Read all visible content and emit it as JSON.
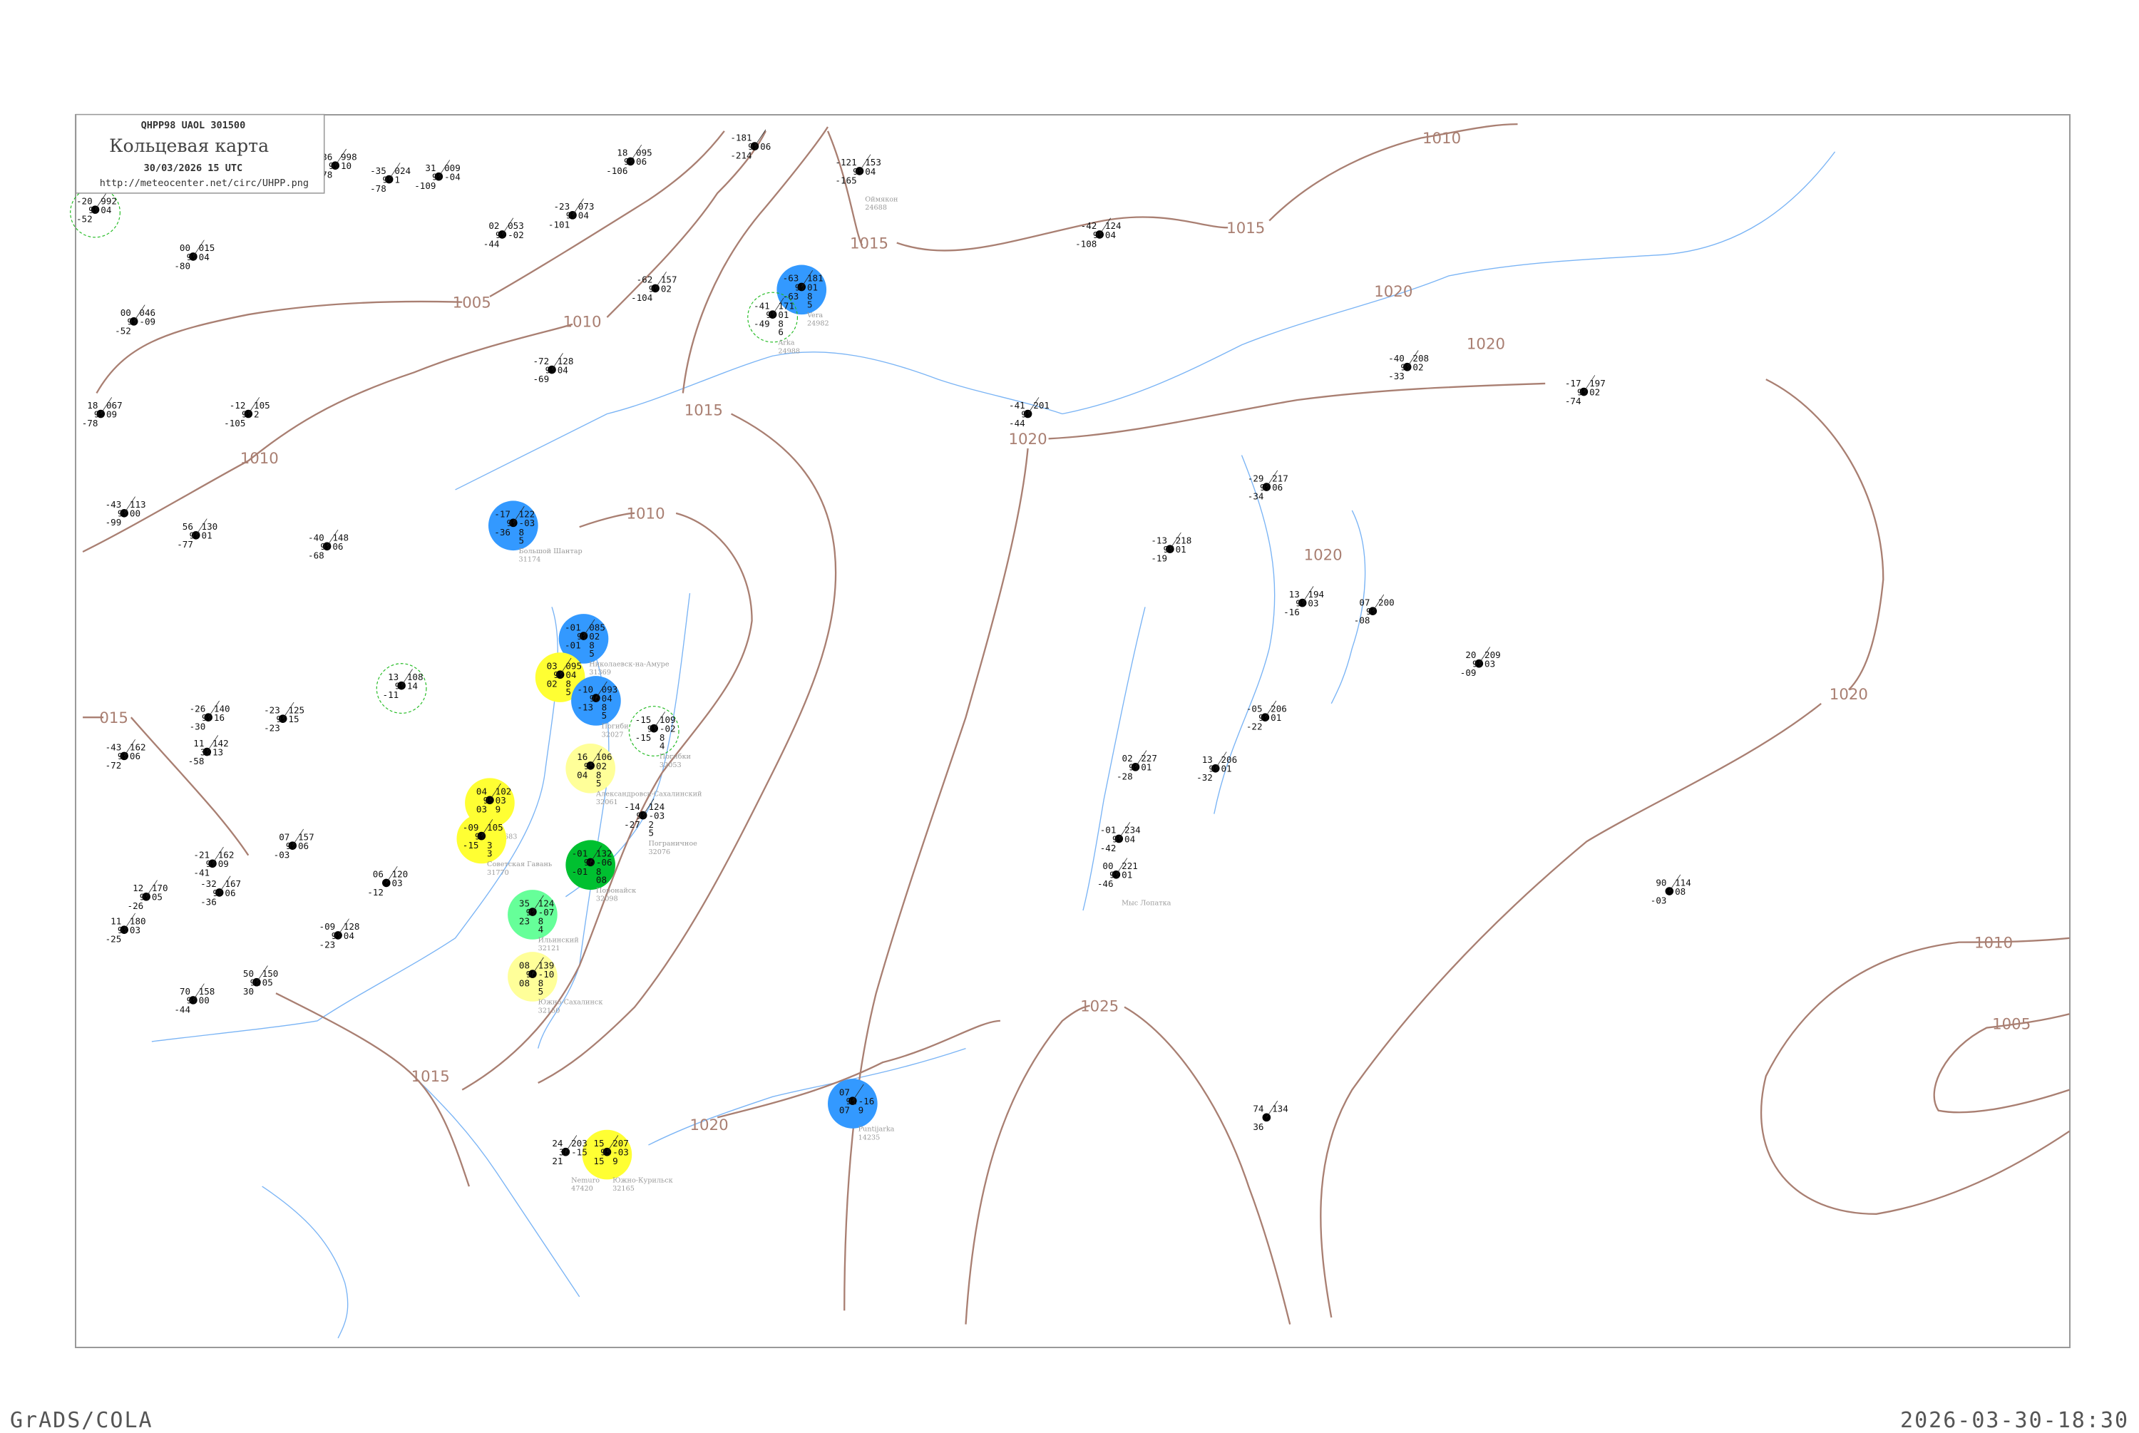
{
  "header": {
    "code_line": "QHPP98  UAOL  301500",
    "title": "Кольцевая карта",
    "datetime": "30/03/2026 15 UTC",
    "url": "http://meteocenter.net/circ/UHPP.png"
  },
  "footer": {
    "left": "GrADS/COLA",
    "right": "2026-03-30-18:30"
  },
  "colors": {
    "isobar": "#a97f72",
    "coast": "#7ab4f5",
    "blue_highlight": "#3399ff",
    "yellow_highlight": "#ffff33",
    "light_yellow_highlight": "#ffff99",
    "green_highlight": "#00c030",
    "light_green_highlight": "#66ff99",
    "dashed_ring": "#22bb22"
  },
  "isobars": [
    {
      "label": "1005"
    },
    {
      "label": "1010"
    },
    {
      "label": "1015"
    },
    {
      "label": "1015"
    },
    {
      "label": "1010"
    },
    {
      "label": "1020"
    },
    {
      "label": "1020"
    },
    {
      "label": "1015"
    },
    {
      "label": "1020"
    },
    {
      "label": "1010"
    },
    {
      "label": "1010"
    },
    {
      "label": "1020"
    },
    {
      "label": "015"
    },
    {
      "label": "1020"
    },
    {
      "label": "1010"
    },
    {
      "label": "1005"
    },
    {
      "label": "1025"
    },
    {
      "label": "1020"
    },
    {
      "label": "1015"
    }
  ],
  "stations": [
    {
      "name": "Vera",
      "id": "24982",
      "t": "-63",
      "vis": "97",
      "td": "-63",
      "p": "181",
      "tend": "01",
      "clouds": "8",
      "low": "5",
      "highlight": "blue"
    },
    {
      "name": "Arka",
      "id": "24988",
      "t": "-41",
      "vis": "97",
      "td": "-49",
      "p": "171",
      "tend": "01",
      "clouds": "8",
      "low": "6",
      "highlight": "ring"
    },
    {
      "name": "Большой Шантар",
      "id": "31174",
      "t": "-17",
      "vis": "97",
      "td": "-36",
      "p": "122",
      "tend": "-03",
      "clouds": "8",
      "low": "5",
      "highlight": "blue"
    },
    {
      "name": "Николаевск-на-Амуре",
      "id": "31369",
      "t": "-01",
      "vis": "97",
      "td": "-01",
      "p": "085",
      "tend": "02",
      "clouds": "8",
      "low": "5",
      "highlight": "blue"
    },
    {
      "name": "",
      "id": "",
      "t": "03",
      "vis": "97",
      "td": "02",
      "p": "095",
      "tend": "04",
      "clouds": "8",
      "low": "5",
      "highlight": "yellow"
    },
    {
      "name": "Погиби",
      "id": "32027",
      "t": "-10",
      "vis": "96",
      "td": "-13",
      "p": "093",
      "tend": "04",
      "clouds": "8",
      "low": "5",
      "highlight": "blue"
    },
    {
      "name": "Погибки",
      "id": "32053",
      "t": "-15",
      "vis": "97",
      "td": "-15",
      "p": "109",
      "tend": "-02",
      "clouds": "8",
      "low": "4",
      "highlight": "ring"
    },
    {
      "name": "Александровск-Сахалинский",
      "id": "32061",
      "t": "16",
      "vis": "95",
      "td": "04",
      "p": "106",
      "tend": "02",
      "clouds": "8",
      "low": "5",
      "highlight": "light_yellow"
    },
    {
      "name": "",
      "id": "31683",
      "t": "04",
      "vis": "93",
      "td": "03",
      "p": "102",
      "tend": "03",
      "clouds": "9",
      "low": "",
      "highlight": "yellow"
    },
    {
      "name": "Советская Гавань",
      "id": "31770",
      "t": "-09",
      "vis": "97",
      "td": "-15",
      "p": "105",
      "tend": "",
      "clouds": "3",
      "low": "3",
      "highlight": "yellow"
    },
    {
      "name": "Поронайск",
      "id": "32098",
      "t": "-01",
      "vis": "96",
      "td": "-01",
      "p": "132",
      "tend": "-06",
      "clouds": "8",
      "low": "08",
      "highlight": "green"
    },
    {
      "name": "Ильинский",
      "id": "32121",
      "t": "35",
      "vis": "97",
      "td": "23",
      "p": "124",
      "tend": "-07",
      "clouds": "8",
      "low": "4",
      "highlight": "light_green"
    },
    {
      "name": "Южно-Сахалинск",
      "id": "32150",
      "t": "08",
      "vis": "96",
      "td": "08",
      "p": "139",
      "tend": "-10",
      "clouds": "8",
      "low": "5",
      "highlight": "light_yellow"
    },
    {
      "name": "Южно-Курильск",
      "id": "32165",
      "t": "15",
      "vis": "93",
      "td": "15",
      "p": "207",
      "tend": "-03",
      "clouds": "9",
      "low": "",
      "highlight": "yellow"
    },
    {
      "name": "Puntijarka",
      "id": "14235",
      "t": "07",
      "vis": "91",
      "td": "07",
      "p": "",
      "tend": "-16",
      "clouds": "9",
      "low": "",
      "highlight": "blue"
    },
    {
      "name": "Пограничное",
      "id": "32076",
      "t": "-14",
      "vis": "97",
      "td": "-27",
      "p": "124",
      "tend": "-03",
      "clouds": "2",
      "low": "5",
      "highlight": "none"
    },
    {
      "name": "Nemuro",
      "id": "47420",
      "t": "24",
      "vis": "30",
      "td": "21",
      "p": "203",
      "tend": "-15",
      "clouds": "",
      "low": "",
      "highlight": "none"
    },
    {
      "name": "Оймякон",
      "id": "24688",
      "t": "-121",
      "vis": "97",
      "td": "-165",
      "p": "153",
      "tend": "04",
      "clouds": "",
      "low": "",
      "highlight": "none"
    },
    {
      "name": "Мыс Лопатка",
      "id": "",
      "t": "00",
      "vis": "97",
      "td": "-46",
      "p": "221",
      "tend": "01",
      "clouds": "",
      "low": "",
      "highlight": "none"
    },
    {
      "name": "",
      "id": "",
      "t": "-20",
      "vis": "97",
      "td": "-52",
      "p": "992",
      "tend": "04",
      "clouds": "",
      "low": "",
      "highlight": "ring"
    },
    {
      "name": "",
      "id": "",
      "t": "00",
      "vis": "97",
      "td": "-80",
      "p": "015",
      "tend": "04",
      "clouds": "",
      "low": "",
      "highlight": "none"
    },
    {
      "name": "",
      "id": "",
      "t": "00",
      "vis": "97",
      "td": "-52",
      "p": "046",
      "tend": "-09",
      "clouds": "",
      "low": "",
      "highlight": "none"
    },
    {
      "name": "",
      "id": "",
      "t": "18",
      "vis": "97",
      "td": "-78",
      "p": "067",
      "tend": "09",
      "clouds": "",
      "low": "",
      "highlight": "none"
    },
    {
      "name": "",
      "id": "",
      "t": "-12",
      "vis": "97",
      "td": "-105",
      "p": "105",
      "tend": "2",
      "clouds": "",
      "low": "",
      "highlight": "none"
    },
    {
      "name": "",
      "id": "",
      "t": "-43",
      "vis": "97",
      "td": "-99",
      "p": "113",
      "tend": "00",
      "clouds": "",
      "low": "",
      "highlight": "none"
    },
    {
      "name": "",
      "id": "",
      "t": "56",
      "vis": "97",
      "td": "-77",
      "p": "130",
      "tend": "01",
      "clouds": "",
      "low": "",
      "highlight": "none"
    },
    {
      "name": "",
      "id": "",
      "t": "-40",
      "vis": "97",
      "td": "-68",
      "p": "148",
      "tend": "06",
      "clouds": "",
      "low": "",
      "highlight": "none"
    },
    {
      "name": "",
      "id": "",
      "t": "-72",
      "vis": "97",
      "td": "-69",
      "p": "128",
      "tend": "04",
      "clouds": "",
      "low": "",
      "highlight": "none"
    },
    {
      "name": "",
      "id": "",
      "t": "-62",
      "vis": "97",
      "td": "-104",
      "p": "157",
      "tend": "02",
      "clouds": "",
      "low": "",
      "highlight": "none"
    },
    {
      "name": "",
      "id": "",
      "t": "18",
      "vis": "97",
      "td": "-106",
      "p": "095",
      "tend": "06",
      "clouds": "",
      "low": "",
      "highlight": "none"
    },
    {
      "name": "",
      "id": "",
      "t": "-181",
      "vis": "97",
      "td": "-214",
      "p": "",
      "tend": "06",
      "clouds": "",
      "low": "",
      "highlight": "none"
    },
    {
      "name": "",
      "id": "",
      "t": "-42",
      "vis": "97",
      "td": "-108",
      "p": "124",
      "tend": "04",
      "clouds": "",
      "low": "",
      "highlight": "none"
    },
    {
      "name": "",
      "id": "",
      "t": "-40",
      "vis": "97",
      "td": "-33",
      "p": "208",
      "tend": "02",
      "clouds": "",
      "low": "",
      "highlight": "none"
    },
    {
      "name": "",
      "id": "",
      "t": "-17",
      "vis": "97",
      "td": "-74",
      "p": "197",
      "tend": "02",
      "clouds": "",
      "low": "",
      "highlight": "none"
    },
    {
      "name": "",
      "id": "",
      "t": "-29",
      "vis": "97",
      "td": "-34",
      "p": "217",
      "tend": "06",
      "clouds": "",
      "low": "",
      "highlight": "none"
    },
    {
      "name": "",
      "id": "",
      "t": "-13",
      "vis": "97",
      "td": "-19",
      "p": "218",
      "tend": "01",
      "clouds": "",
      "low": "",
      "highlight": "none"
    },
    {
      "name": "",
      "id": "",
      "t": "13",
      "vis": "97",
      "td": "-16",
      "p": "194",
      "tend": "03",
      "clouds": "",
      "low": "",
      "highlight": "none"
    },
    {
      "name": "",
      "id": "",
      "t": "07",
      "vis": "97",
      "td": "-08",
      "p": "200",
      "tend": "",
      "clouds": "",
      "low": "",
      "highlight": "none"
    },
    {
      "name": "",
      "id": "",
      "t": "20",
      "vis": "97",
      "td": "-09",
      "p": "209",
      "tend": "03",
      "clouds": "",
      "low": "",
      "highlight": "none"
    },
    {
      "name": "",
      "id": "",
      "t": "-05",
      "vis": "97",
      "td": "-22",
      "p": "206",
      "tend": "01",
      "clouds": "",
      "low": "",
      "highlight": "none"
    },
    {
      "name": "",
      "id": "",
      "t": "02",
      "vis": "97",
      "td": "-28",
      "p": "227",
      "tend": "01",
      "clouds": "",
      "low": "",
      "highlight": "none"
    },
    {
      "name": "",
      "id": "",
      "t": "13",
      "vis": "97",
      "td": "-32",
      "p": "206",
      "tend": "01",
      "clouds": "",
      "low": "",
      "highlight": "none"
    },
    {
      "name": "",
      "id": "",
      "t": "-01",
      "vis": "97",
      "td": "-42",
      "p": "234",
      "tend": "04",
      "clouds": "",
      "low": "",
      "highlight": "none"
    },
    {
      "name": "",
      "id": "",
      "t": "90",
      "vis": "",
      "td": "-03",
      "p": "114",
      "tend": "08",
      "clouds": "",
      "low": "",
      "highlight": "none"
    },
    {
      "name": "",
      "id": "",
      "t": "74",
      "vis": "",
      "td": "36",
      "p": "134",
      "tend": "",
      "clouds": "",
      "low": "",
      "highlight": "none"
    },
    {
      "name": "",
      "id": "",
      "t": "-41",
      "vis": "97",
      "td": "-44",
      "p": "201",
      "tend": "",
      "clouds": "",
      "low": "",
      "highlight": "none"
    },
    {
      "name": "",
      "id": "",
      "t": "36",
      "vis": "97",
      "td": "-78",
      "p": "998",
      "tend": "10",
      "clouds": "",
      "low": "",
      "highlight": "none"
    },
    {
      "name": "",
      "id": "",
      "t": "-35",
      "vis": "97",
      "td": "-78",
      "p": "024",
      "tend": "1",
      "clouds": "",
      "low": "",
      "highlight": "none"
    },
    {
      "name": "",
      "id": "",
      "t": "31",
      "vis": "97",
      "td": "-109",
      "p": "009",
      "tend": "-04",
      "clouds": "",
      "low": "",
      "highlight": "none"
    },
    {
      "name": "",
      "id": "",
      "t": "02",
      "vis": "97",
      "td": "-44",
      "p": "053",
      "tend": "-02",
      "clouds": "",
      "low": "",
      "highlight": "none"
    },
    {
      "name": "",
      "id": "",
      "t": "-23",
      "vis": "97",
      "td": "-101",
      "p": "073",
      "tend": "04",
      "clouds": "",
      "low": "",
      "highlight": "none"
    },
    {
      "name": "",
      "id": "",
      "t": "07",
      "vis": "97",
      "td": "-03",
      "p": "157",
      "tend": "06",
      "clouds": "",
      "low": "",
      "highlight": "none"
    },
    {
      "name": "",
      "id": "",
      "t": "-21",
      "vis": "97",
      "td": "-41",
      "p": "162",
      "tend": "09",
      "clouds": "",
      "low": "",
      "highlight": "none"
    },
    {
      "name": "",
      "id": "",
      "t": "-32",
      "vis": "97",
      "td": "-36",
      "p": "167",
      "tend": "06",
      "clouds": "",
      "low": "",
      "highlight": "none"
    },
    {
      "name": "",
      "id": "",
      "t": "12",
      "vis": "97",
      "td": "-26",
      "p": "170",
      "tend": "05",
      "clouds": "",
      "low": "",
      "highlight": "none"
    },
    {
      "name": "",
      "id": "",
      "t": "11",
      "vis": "97",
      "td": "-25",
      "p": "180",
      "tend": "03",
      "clouds": "",
      "low": "",
      "highlight": "none"
    },
    {
      "name": "",
      "id": "",
      "t": "70",
      "vis": "97",
      "td": "-44",
      "p": "158",
      "tend": "00",
      "clouds": "",
      "low": "",
      "highlight": "none"
    },
    {
      "name": "",
      "id": "",
      "t": "50",
      "vis": "92",
      "td": "30",
      "p": "150",
      "tend": "05",
      "clouds": "",
      "low": "",
      "highlight": "none"
    },
    {
      "name": "",
      "id": "",
      "t": "-09",
      "vis": "97",
      "td": "-23",
      "p": "128",
      "tend": "04",
      "clouds": "",
      "low": "",
      "highlight": "none"
    },
    {
      "name": "",
      "id": "",
      "t": "06",
      "vis": "",
      "td": "-12",
      "p": "120",
      "tend": "03",
      "clouds": "",
      "low": "",
      "highlight": "none"
    },
    {
      "name": "",
      "id": "",
      "t": "-43",
      "vis": "97",
      "td": "-72",
      "p": "162",
      "tend": "06",
      "clouds": "",
      "low": "",
      "highlight": "none"
    },
    {
      "name": "",
      "id": "",
      "t": "11",
      "vis": "32",
      "td": "-58",
      "p": "142",
      "tend": "13",
      "clouds": "",
      "low": "",
      "highlight": "none"
    },
    {
      "name": "",
      "id": "",
      "t": "13",
      "vis": "97",
      "td": "-11",
      "p": "108",
      "tend": "14",
      "clouds": "",
      "low": "",
      "highlight": "ring"
    },
    {
      "name": "",
      "id": "",
      "t": "-23",
      "vis": "97",
      "td": "-23",
      "p": "125",
      "tend": "15",
      "clouds": "",
      "low": "",
      "highlight": "none"
    },
    {
      "name": "",
      "id": "",
      "t": "-26",
      "vis": "97",
      "td": "-30",
      "p": "140",
      "tend": "16",
      "clouds": "",
      "low": "",
      "highlight": "none"
    }
  ]
}
